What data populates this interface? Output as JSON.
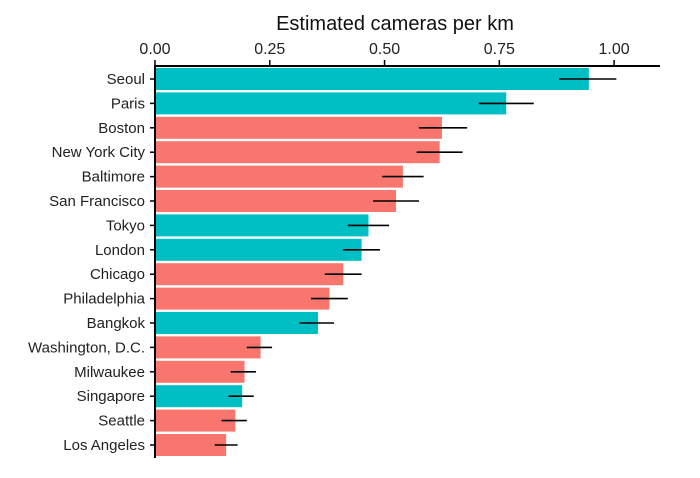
{
  "chart_data": {
    "type": "bar",
    "orientation": "horizontal",
    "title": "",
    "xlabel": "Estimated cameras per km",
    "xaxis_position": "top",
    "ylabel": "",
    "xlim": [
      0,
      1.1
    ],
    "xticks": [
      0,
      0.25,
      0.5,
      0.75,
      1.0
    ],
    "xtick_labels": [
      "0.00",
      "0.25",
      "0.50",
      "0.75",
      "1.00"
    ],
    "grid": false,
    "legend": "none",
    "colors": {
      "salmon": "#f8766d",
      "teal": "#00bfc4",
      "error_bar": "#000000"
    },
    "categories": [
      "Seoul",
      "Paris",
      "Boston",
      "New York City",
      "Baltimore",
      "San Francisco",
      "Tokyo",
      "London",
      "Chicago",
      "Philadelphia",
      "Bangkok",
      "Washington, D.C.",
      "Milwaukee",
      "Singapore",
      "Seattle",
      "Los Angeles"
    ],
    "values": [
      0.945,
      0.765,
      0.625,
      0.62,
      0.54,
      0.525,
      0.465,
      0.45,
      0.41,
      0.38,
      0.355,
      0.23,
      0.195,
      0.19,
      0.175,
      0.155
    ],
    "error_low": [
      0.88,
      0.705,
      0.575,
      0.57,
      0.495,
      0.475,
      0.42,
      0.41,
      0.37,
      0.34,
      0.315,
      0.2,
      0.165,
      0.16,
      0.145,
      0.13
    ],
    "error_high": [
      1.005,
      0.825,
      0.68,
      0.67,
      0.585,
      0.575,
      0.51,
      0.49,
      0.45,
      0.42,
      0.39,
      0.255,
      0.22,
      0.215,
      0.2,
      0.18
    ],
    "bar_colors": [
      "teal",
      "teal",
      "salmon",
      "salmon",
      "salmon",
      "salmon",
      "teal",
      "teal",
      "salmon",
      "salmon",
      "teal",
      "salmon",
      "salmon",
      "teal",
      "salmon",
      "salmon"
    ]
  }
}
